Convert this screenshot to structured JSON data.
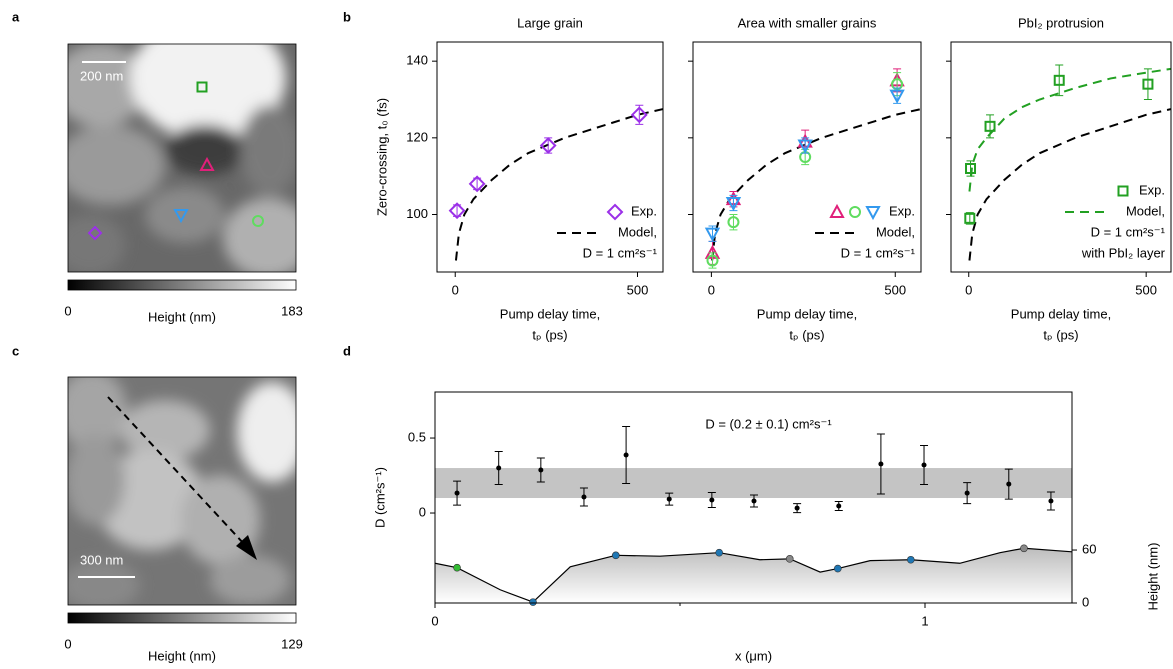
{
  "panel_labels": [
    "a",
    "b",
    "c",
    "d"
  ],
  "images": [
    {
      "scale_bar": "200 nm",
      "colorbar": {
        "min": 0,
        "max": 183,
        "label": "Height (nm)"
      }
    },
    {
      "scale_bar": "300 nm",
      "colorbar": {
        "min": 0,
        "max": 129,
        "label": "Height (nm)"
      }
    }
  ],
  "chart_data": [
    {
      "type": "scatter",
      "title": "Large grain",
      "ylabel": "Zero-crossing, t₀ (fs)",
      "xlabel": [
        "Pump delay time,",
        "tₚ (ps)"
      ],
      "xlim": [
        -50,
        570
      ],
      "ylim": [
        85,
        145
      ],
      "xticks": [
        0,
        500
      ],
      "yticks": [
        100,
        120,
        140
      ],
      "ytick_labels": true,
      "legend": "lower right",
      "series": [
        {
          "name": "Exp.",
          "marker": "diamond",
          "color": "#9b30e8",
          "x": [
            5,
            60,
            255,
            505
          ],
          "values": [
            101,
            108,
            118,
            126
          ],
          "errors": [
            1.5,
            1.5,
            2,
            2.5
          ]
        },
        {
          "name": [
            "Model,",
            "D = 1 cm²s⁻¹"
          ],
          "style": "dashed",
          "color": "#000000",
          "x": [
            2,
            10,
            25,
            50,
            100,
            150,
            200,
            300,
            400,
            500,
            570
          ],
          "values": [
            88,
            95,
            100,
            104,
            109,
            113,
            116,
            120,
            123,
            126,
            127.5
          ]
        }
      ]
    },
    {
      "type": "scatter",
      "title": "Area with smaller grains",
      "xlabel": [
        "Pump delay time,",
        "tₚ (ps)"
      ],
      "xlim": [
        -50,
        570
      ],
      "ylim": [
        85,
        145
      ],
      "xticks": [
        0,
        500
      ],
      "yticks": [
        100,
        120,
        140
      ],
      "ytick_labels": false,
      "legend": "lower right",
      "series": [
        {
          "name": "Exp.",
          "marker": "triangle",
          "color": "#e0207a",
          "x": [
            3,
            60,
            255,
            505
          ],
          "values": [
            90,
            104,
            119,
            135
          ],
          "errors": [
            3,
            2,
            3,
            3
          ]
        },
        {
          "marker": "circle",
          "color": "#5fdc5f",
          "x": [
            3,
            60,
            255,
            505
          ],
          "values": [
            88,
            98,
            115,
            134
          ],
          "errors": [
            2,
            2,
            2,
            3
          ]
        },
        {
          "marker": "triangle-down",
          "color": "#3399ee",
          "x": [
            3,
            60,
            255,
            505
          ],
          "values": [
            95,
            103,
            118,
            131
          ],
          "errors": [
            2,
            2,
            2,
            2
          ]
        },
        {
          "name": [
            "Model,",
            "D = 1 cm²s⁻¹"
          ],
          "style": "dashed",
          "color": "#000000",
          "x": [
            2,
            10,
            25,
            50,
            100,
            150,
            200,
            300,
            400,
            500,
            570
          ],
          "values": [
            88,
            95,
            100,
            104,
            109,
            113,
            116,
            120,
            123,
            126,
            127.5
          ]
        }
      ]
    },
    {
      "type": "scatter",
      "title": "PbI₂ protrusion",
      "xlabel": [
        "Pump delay time,",
        "tₚ (ps)"
      ],
      "xlim": [
        -50,
        570
      ],
      "ylim": [
        85,
        145
      ],
      "xticks": [
        0,
        500
      ],
      "yticks": [
        100,
        120,
        140
      ],
      "ytick_labels": false,
      "legend": "lower right",
      "series": [
        {
          "name": "Exp.",
          "marker": "square",
          "color": "#22a022",
          "x": [
            3,
            5,
            60,
            255,
            505
          ],
          "values": [
            99,
            112,
            123,
            135,
            134
          ],
          "errors": [
            1.5,
            2,
            3,
            4,
            4
          ]
        },
        {
          "style": "dashed",
          "color": "#000000",
          "x": [
            2,
            10,
            25,
            50,
            100,
            150,
            200,
            300,
            400,
            500,
            570
          ],
          "values": [
            88,
            95,
            100,
            104,
            109,
            113,
            116,
            120,
            123,
            126,
            127.5
          ]
        },
        {
          "name": [
            "Model,",
            "D = 1 cm²s⁻¹",
            "with PbI₂ layer"
          ],
          "style": "dashed",
          "color": "#22a022",
          "x": [
            2,
            10,
            25,
            50,
            100,
            150,
            200,
            300,
            400,
            500,
            570
          ],
          "values": [
            106,
            113,
            117,
            120,
            125,
            128,
            130,
            133,
            135.5,
            137,
            138
          ]
        }
      ]
    },
    {
      "type": "scatter",
      "xlabel": "x (μm)",
      "ylabel": "D (cm²s⁻¹)",
      "y2label": "Height (nm)",
      "annotation": "D = (0.2 ± 0.1) cm²s⁻¹",
      "xlim": [
        0,
        1.3
      ],
      "ylim": [
        -0.6,
        0.807
      ],
      "xticks": [
        0,
        1
      ],
      "xminorticks": [
        0.5
      ],
      "yticks": [
        0,
        0.5
      ],
      "ytick_labels": true,
      "y2lim": [
        0,
        239
      ],
      "y2ticks": [
        0,
        60
      ],
      "band": [
        0.1,
        0.3
      ],
      "band_color": "#c4c4c4",
      "series": [
        {
          "marker": "dot",
          "color": "#000000",
          "x": [
            0.045,
            0.13,
            0.216,
            0.304,
            0.39,
            0.478,
            0.565,
            0.651,
            0.739,
            0.824,
            0.91,
            0.998,
            1.086,
            1.171,
            1.257
          ],
          "values": [
            0.133,
            0.3,
            0.287,
            0.107,
            0.387,
            0.093,
            0.087,
            0.08,
            0.033,
            0.047,
            0.327,
            0.32,
            0.133,
            0.193,
            0.08
          ],
          "errors": [
            0.08,
            0.11,
            0.08,
            0.06,
            0.19,
            0.04,
            0.05,
            0.04,
            0.03,
            0.03,
            0.2,
            0.13,
            0.07,
            0.1,
            0.06
          ]
        },
        {
          "style": "area",
          "axis": "y2",
          "color": "#000000",
          "x": [
            0,
            0.045,
            0.133,
            0.2,
            0.276,
            0.369,
            0.459,
            0.58,
            0.663,
            0.724,
            0.786,
            0.822,
            0.888,
            0.971,
            1.071,
            1.153,
            1.202,
            1.3
          ],
          "values": [
            45,
            40,
            15,
            1,
            41,
            54,
            53,
            57,
            49,
            50,
            35,
            39,
            48,
            49,
            45,
            57,
            62,
            58
          ]
        },
        {
          "marker": "ball",
          "axis": "y2",
          "colors": [
            "#33bb33",
            "#1f77b4",
            "#1f77b4",
            "#1f77b4",
            "#888888",
            "#1f77b4",
            "#1f77b4",
            "#888888"
          ],
          "x": [
            0.045,
            0.2,
            0.369,
            0.58,
            0.724,
            0.822,
            0.971,
            1.202
          ],
          "values": [
            40,
            1,
            54,
            57,
            50,
            39,
            49,
            62
          ]
        }
      ]
    }
  ]
}
